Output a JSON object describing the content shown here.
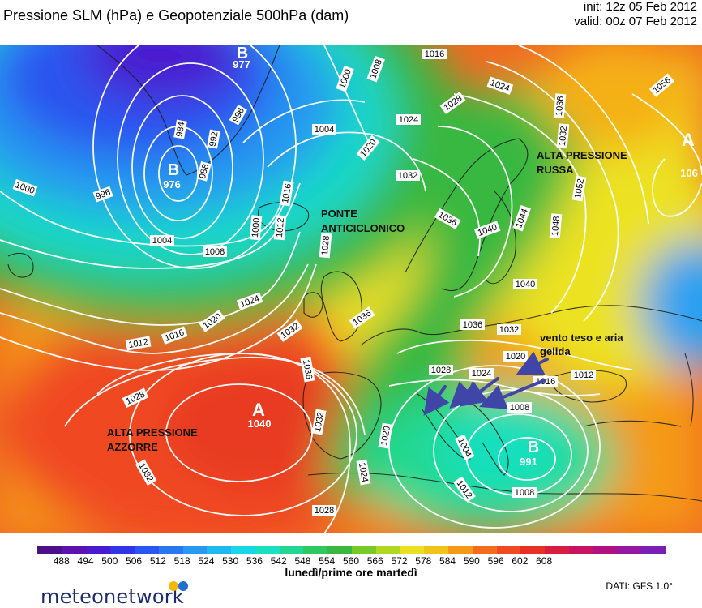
{
  "header": {
    "title": "Pressione SLM (hPa) e Geopotenziale 500hPa (dam)",
    "init": "init: 12z 05 Feb 2012",
    "valid": "valid: 00z 07 Feb 2012"
  },
  "map": {
    "annotations": [
      "ALTA PRESSIONE RUSSA",
      "PONTE ANTICICLONICO",
      "ALTA PRESSIONE AZZORRE",
      "vento teso e aria gelida"
    ],
    "centers": [
      {
        "letter": "B",
        "value": "977"
      },
      {
        "letter": "B",
        "value": "976"
      },
      {
        "letter": "A",
        "value": "1040"
      },
      {
        "letter": "A",
        "value": "106"
      },
      {
        "letter": "B",
        "value": "991"
      }
    ],
    "isobar_labels": [
      "1000",
      "1004",
      "1008",
      "1012",
      "1016",
      "1020",
      "1024",
      "1028",
      "1032",
      "1036",
      "1040",
      "1044",
      "1048",
      "1052",
      "1056",
      "996",
      "992",
      "988",
      "984"
    ],
    "colors": {
      "low_blue": "#2a55e8",
      "cyan": "#18d8d0",
      "green": "#22b23c",
      "yellow": "#f0e020",
      "orange": "#f59a18",
      "red": "#f04a22",
      "isobar": "#ffffff",
      "coast": "#1a1a1a",
      "arrow": "#3f46a8"
    }
  },
  "legend": {
    "ticks": [
      "488",
      "494",
      "500",
      "506",
      "512",
      "518",
      "524",
      "530",
      "536",
      "542",
      "548",
      "554",
      "560",
      "566",
      "572",
      "578",
      "584",
      "590",
      "596",
      "602",
      "608"
    ],
    "colors": [
      "#4b0f8a",
      "#5a12b0",
      "#4a1ad0",
      "#3035e8",
      "#2a55f0",
      "#2a78f0",
      "#2898f0",
      "#20b8f0",
      "#18d8e8",
      "#18e0c0",
      "#22d890",
      "#30c860",
      "#38b840",
      "#78c828",
      "#b0d820",
      "#e8e020",
      "#f0c418",
      "#f59a18",
      "#f56c1c",
      "#f04a22",
      "#e83028",
      "#d81e40",
      "#c81460",
      "#b01080",
      "#9418a0",
      "#7a20b8"
    ],
    "caption": "lunedì/prime ore martedì"
  },
  "footer": {
    "brand": "meteonetwork",
    "source": "DATI: GFS 1.0°"
  }
}
